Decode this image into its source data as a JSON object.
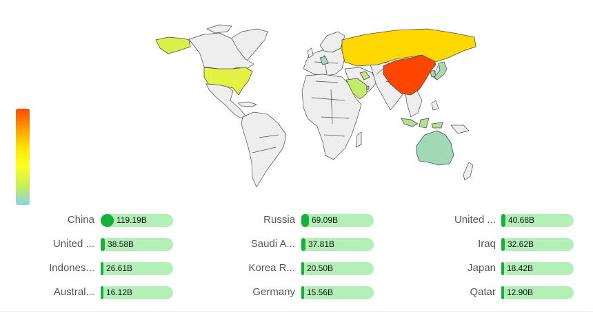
{
  "chart_data": {
    "type": "choropleth-map",
    "legend": {
      "scale": "continuous",
      "colors": [
        "#ff4a00",
        "#ffe400",
        "#d2f050",
        "#87d4f0"
      ]
    },
    "regions": [
      {
        "name": "China",
        "value": 119.19,
        "display": "119.19B",
        "color": "#ff4500"
      },
      {
        "name": "Russia",
        "value": 69.09,
        "display": "69.09B",
        "color": "#ffd800"
      },
      {
        "name": "United ...",
        "value": 40.68,
        "display": "40.68B",
        "color": "#e4f243"
      },
      {
        "name": "United ...",
        "value": 38.58,
        "display": "38.58B",
        "color": "#d9f048"
      },
      {
        "name": "Saudi A...",
        "value": 37.81,
        "display": "37.81B",
        "color": "#c6ea6a"
      },
      {
        "name": "Iraq",
        "value": 32.62,
        "display": "32.62B",
        "color": "#c0e87a"
      },
      {
        "name": "Indones...",
        "value": 26.61,
        "display": "26.61B",
        "color": "#b2e290"
      },
      {
        "name": "Korea R...",
        "value": 20.5,
        "display": "20.50B",
        "color": "#a7dcaa"
      },
      {
        "name": "Japan",
        "value": 18.42,
        "display": "18.42B",
        "color": "#a8dcae"
      },
      {
        "name": "Austral...",
        "value": 16.12,
        "display": "16.12B",
        "color": "#a1d9b7"
      },
      {
        "name": "Germany",
        "value": 15.56,
        "display": "15.56B",
        "color": "#9fd8bb"
      },
      {
        "name": "Qatar",
        "value": 12.9,
        "display": "12.90B",
        "color": "#9ad6c4"
      }
    ],
    "max_value": 119.19
  },
  "colors": {
    "land": "#eeeeee",
    "border": "#4a4a4a",
    "track": "#b2f0b8",
    "fill": "#16b13a"
  }
}
